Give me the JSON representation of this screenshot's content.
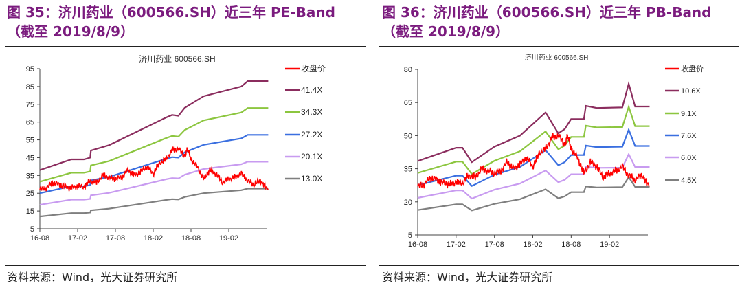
{
  "panels": [
    {
      "title": "图 35：济川药业（600566.SH）近三年 PE-Band （截至 2019/8/9）",
      "source": "资料来源：Wind，光大证券研究所"
    },
    {
      "title": "图 36：济川药业（600566.SH）近三年 PB-Band （截至 2019/8/9）",
      "source": "资料来源：Wind，光大证券研究所"
    }
  ],
  "chart_data": [
    {
      "type": "line",
      "title": "济川药业 600566.SH",
      "xlim": [
        "2016-08",
        "2019-08"
      ],
      "xticks": [
        "16-08",
        "17-02",
        "17-08",
        "18-02",
        "18-08",
        "19-02"
      ],
      "ylim": [
        5,
        95
      ],
      "yticks": [
        5,
        15,
        25,
        35,
        45,
        55,
        65,
        75,
        85,
        95
      ],
      "grid": false,
      "legend": "right",
      "band_x": [
        "2016-08-01",
        "2017-01-01",
        "2017-03-01",
        "2017-04-01",
        "2017-04-04",
        "2017-07-01",
        "2018-04-01",
        "2018-05-01",
        "2018-06-01",
        "2018-07-01",
        "2018-10-01",
        "2019-04-01",
        "2019-05-01",
        "2019-08-09"
      ],
      "series": [
        {
          "name": "收盘价",
          "color": "#FF0000",
          "type": "price"
        },
        {
          "name": "41.4X",
          "color": "#8B2D5E",
          "values": [
            38,
            44,
            44,
            45,
            49,
            52,
            67.5,
            69,
            68.5,
            73,
            79.5,
            85,
            88,
            88
          ]
        },
        {
          "name": "34.3X",
          "color": "#8CC63F",
          "values": [
            31.5,
            36.5,
            36.5,
            37.3,
            40.6,
            43.1,
            55.9,
            57.2,
            56.8,
            60.5,
            65.9,
            70.4,
            72.9,
            72.9
          ]
        },
        {
          "name": "27.2X",
          "color": "#3A6FE0",
          "values": [
            25.0,
            28.9,
            28.9,
            29.6,
            32.2,
            34.2,
            44.3,
            45.3,
            45.0,
            48.0,
            52.2,
            55.8,
            57.8,
            57.8
          ]
        },
        {
          "name": "20.1X",
          "color": "#C89BF0",
          "values": [
            18.5,
            21.4,
            21.4,
            21.8,
            23.8,
            25.2,
            32.8,
            33.5,
            33.3,
            35.4,
            38.6,
            41.3,
            42.7,
            42.7
          ]
        },
        {
          "name": "13.0X",
          "color": "#7F7F7F",
          "values": [
            11.9,
            13.8,
            13.8,
            14.1,
            15.4,
            16.3,
            21.2,
            21.7,
            21.5,
            22.9,
            25.0,
            26.7,
            27.6,
            27.6
          ]
        }
      ]
    },
    {
      "type": "line",
      "title": "济川药业 600566.SH",
      "xlim": [
        "2016-08",
        "2019-08"
      ],
      "xticks": [
        "16-08",
        "17-02",
        "17-08",
        "18-02",
        "18-08",
        "19-02"
      ],
      "ylim": [
        5,
        80
      ],
      "yticks": [
        5,
        20,
        35,
        50,
        65,
        80
      ],
      "grid": false,
      "legend": "right",
      "band_x": [
        "2016-08-01",
        "2017-02-01",
        "2017-03-01",
        "2017-04-15",
        "2017-08-01",
        "2017-12-01",
        "2018-04-01",
        "2018-06-01",
        "2018-07-01",
        "2018-08-01",
        "2018-10-01",
        "2018-10-10",
        "2018-12-01",
        "2019-04-01",
        "2019-05-01",
        "2019-06-01",
        "2019-08-09"
      ],
      "series": [
        {
          "name": "收盘价",
          "color": "#FF0000",
          "type": "price"
        },
        {
          "name": "10.6X",
          "color": "#8B2D5E",
          "values": [
            38.5,
            44.5,
            44.5,
            38,
            45,
            50,
            60.5,
            51,
            53,
            57.5,
            57.5,
            63.5,
            62.5,
            62.8,
            73.5,
            63.2,
            63.2
          ]
        },
        {
          "name": "9.1X",
          "color": "#8CC63F",
          "values": [
            33.1,
            38.2,
            38.2,
            32.6,
            38.6,
            42.9,
            51.9,
            43.8,
            45.5,
            49.4,
            49.4,
            54.5,
            53.7,
            53.9,
            63.1,
            54.3,
            54.3
          ]
        },
        {
          "name": "7.6X",
          "color": "#3A6FE0",
          "values": [
            27.6,
            31.9,
            31.9,
            27.2,
            32.3,
            35.8,
            43.4,
            36.6,
            38.0,
            41.2,
            41.2,
            45.5,
            44.8,
            45.0,
            52.7,
            45.3,
            45.3
          ]
        },
        {
          "name": "6.0X",
          "color": "#C89BF0",
          "values": [
            21.8,
            25.2,
            25.2,
            21.5,
            25.5,
            28.3,
            34.2,
            28.9,
            30.0,
            32.5,
            32.5,
            35.9,
            35.4,
            35.5,
            41.6,
            35.8,
            35.8
          ]
        },
        {
          "name": "4.5X",
          "color": "#7F7F7F",
          "values": [
            16.3,
            18.9,
            18.9,
            16.1,
            19.1,
            21.2,
            25.7,
            21.6,
            22.5,
            24.4,
            24.4,
            27.0,
            26.5,
            26.7,
            31.2,
            26.8,
            26.8
          ]
        }
      ]
    }
  ],
  "price": {
    "x": [
      "2016-08-01",
      "2016-09-01",
      "2016-10-01",
      "2016-11-01",
      "2016-12-01",
      "2017-01-01",
      "2017-02-01",
      "2017-03-01",
      "2017-04-01",
      "2017-05-01",
      "2017-06-01",
      "2017-07-01",
      "2017-08-01",
      "2017-09-01",
      "2017-10-01",
      "2017-11-01",
      "2017-12-01",
      "2018-01-01",
      "2018-02-01",
      "2018-03-01",
      "2018-04-01",
      "2018-05-01",
      "2018-06-01",
      "2018-07-01",
      "2018-07-15",
      "2018-08-01",
      "2018-09-01",
      "2018-10-01",
      "2018-11-01",
      "2018-12-01",
      "2019-01-01",
      "2019-02-01",
      "2019-03-01",
      "2019-04-01",
      "2019-05-01",
      "2019-06-01",
      "2019-07-01",
      "2019-08-09"
    ],
    "values": [
      27,
      28,
      31,
      30,
      28.5,
      28,
      29,
      28.5,
      32,
      31,
      35,
      34,
      33,
      34,
      38,
      35,
      37,
      40,
      36,
      42,
      44,
      49,
      50,
      46,
      50,
      44,
      40,
      33,
      38,
      36,
      31,
      33,
      34,
      36,
      32,
      30,
      32,
      27
    ]
  }
}
